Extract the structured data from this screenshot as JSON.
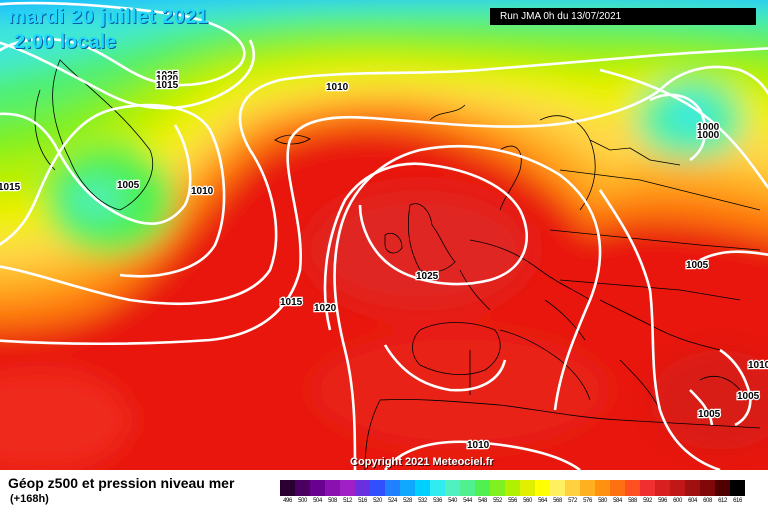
{
  "header": {
    "date": "mardi 20 juillet 2021",
    "time": "2:00 locale",
    "run": "Run JMA 0h du 13/07/2021"
  },
  "footer": {
    "title": "Géop z500 et pression niveau mer",
    "lead": "(+168h)",
    "copyright": "Copyright 2021 Meteociel.fr"
  },
  "isobar_labels": [
    {
      "id": "iso-1025-greenland",
      "text": "1025"
    },
    {
      "id": "iso-1020-greenland",
      "text": "1020"
    },
    {
      "id": "iso-1015-greenland",
      "text": "1015"
    },
    {
      "id": "iso-1010-north",
      "text": "1010"
    },
    {
      "id": "iso-1015-west",
      "text": "1015"
    },
    {
      "id": "iso-1005-greenland",
      "text": "1005"
    },
    {
      "id": "iso-1010-atlantic",
      "text": "1010"
    },
    {
      "id": "iso-1015-atlantic",
      "text": "1015"
    },
    {
      "id": "iso-1020-atlantic",
      "text": "1020"
    },
    {
      "id": "iso-1025-uk",
      "text": "1025"
    },
    {
      "id": "iso-1000-finland-a",
      "text": "1000"
    },
    {
      "id": "iso-1000-finland-b",
      "text": "1000"
    },
    {
      "id": "iso-1005-russia",
      "text": "1005"
    },
    {
      "id": "iso-1005-turkey",
      "text": "1005"
    },
    {
      "id": "iso-1005-greece",
      "text": "1005"
    },
    {
      "id": "iso-1010-east",
      "text": "1010"
    },
    {
      "id": "iso-1010-africa",
      "text": "1010"
    }
  ],
  "legend": {
    "unit_values": [
      "496",
      "500",
      "504",
      "508",
      "512",
      "516",
      "520",
      "524",
      "528",
      "532",
      "536",
      "540",
      "544",
      "548",
      "552",
      "556",
      "560",
      "564",
      "568",
      "572",
      "576",
      "580",
      "584",
      "588",
      "592",
      "596",
      "600",
      "604",
      "608",
      "612",
      "616"
    ],
    "colors": [
      "#2a0030",
      "#4a0060",
      "#6a0090",
      "#8a10b0",
      "#a020c8",
      "#6a30e0",
      "#3050ff",
      "#2080ff",
      "#10a8ff",
      "#00d0ff",
      "#30ecf0",
      "#50f0c0",
      "#50f090",
      "#50f050",
      "#80f020",
      "#b0f000",
      "#e0f000",
      "#ffff00",
      "#fff060",
      "#ffd040",
      "#ffb020",
      "#ff9010",
      "#ff7010",
      "#ff5020",
      "#f03030",
      "#d82020",
      "#c01818",
      "#a01010",
      "#800808",
      "#500000",
      "#000000"
    ]
  }
}
